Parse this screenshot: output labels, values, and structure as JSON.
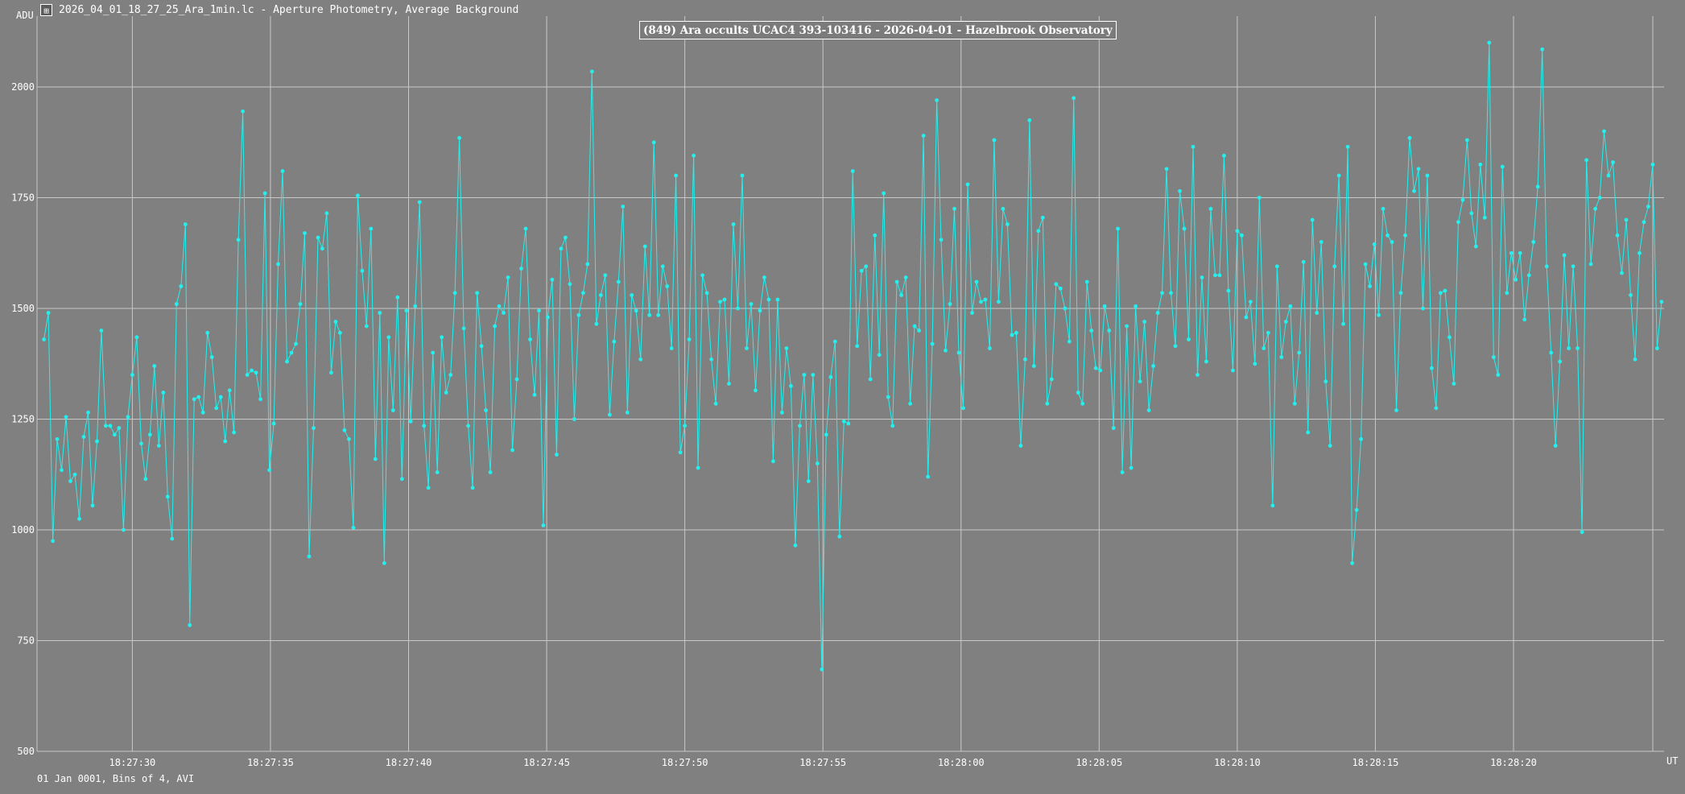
{
  "window": {
    "title": "2026_04_01_18_27_25_Ara_1min.lc - Aperture Photometry, Average Background",
    "icon": "app-chart-icon"
  },
  "colors": {
    "background": "#808080",
    "grid": "#c8c8c8",
    "series": "#22f0ee",
    "text": "#ffffff"
  },
  "footer_text": "01 Jan 0001, Bins of 4, AVI",
  "chart_data": {
    "type": "line",
    "title": "(849) Ara occults UCAC4 393-103416 - 2026-04-01 - Hazelbrook Observatory",
    "ylabel": "ADU",
    "xlabel": "UT",
    "ylim": [
      500,
      2160
    ],
    "xlim_seconds": [
      26.55,
      85.45
    ],
    "y_ticks": [
      500,
      750,
      1000,
      1250,
      1500,
      1750,
      2000
    ],
    "x_ticks": [
      "18:27:30",
      "18:27:35",
      "18:27:40",
      "18:27:45",
      "18:27:50",
      "18:27:55",
      "18:28:00",
      "18:28:05",
      "18:28:10",
      "18:28:15",
      "18:28:20"
    ],
    "x_start": "18:27:26.8",
    "x_step_seconds": 0.16,
    "grid": true,
    "markers": true,
    "series": [
      {
        "values": [
          1430,
          1490,
          975,
          1205,
          1135,
          1255,
          1110,
          1125,
          1025,
          1210,
          1265,
          1055,
          1200,
          1450,
          1235,
          1235,
          1215,
          1230,
          1000,
          1255,
          1350,
          1435,
          1195,
          1115,
          1215,
          1370,
          1190,
          1310,
          1075,
          980,
          1510,
          1550,
          1690,
          785,
          1295,
          1300,
          1265,
          1445,
          1390,
          1275,
          1300,
          1200,
          1315,
          1220,
          1655,
          1945,
          1350,
          1360,
          1355,
          1295,
          1760,
          1135,
          1240,
          1600,
          1810,
          1380,
          1400,
          1420,
          1510,
          1670,
          940,
          1230,
          1660,
          1635,
          1715,
          1355,
          1470,
          1445,
          1225,
          1205,
          1005,
          1755,
          1585,
          1460,
          1680,
          1160,
          1490,
          925,
          1435,
          1270,
          1525,
          1115,
          1495,
          1245,
          1505,
          1740,
          1235,
          1095,
          1400,
          1130,
          1435,
          1310,
          1350,
          1535,
          1885,
          1455,
          1235,
          1095,
          1535,
          1415,
          1270,
          1130,
          1460,
          1505,
          1490,
          1570,
          1180,
          1340,
          1590,
          1680,
          1430,
          1305,
          1495,
          1010,
          1480,
          1565,
          1170,
          1635,
          1660,
          1555,
          1250,
          1485,
          1535,
          1600,
          2035,
          1465,
          1530,
          1575,
          1260,
          1425,
          1560,
          1730,
          1265,
          1530,
          1495,
          1385,
          1640,
          1485,
          1875,
          1485,
          1595,
          1550,
          1410,
          1800,
          1175,
          1235,
          1430,
          1845,
          1140,
          1575,
          1535,
          1385,
          1285,
          1515,
          1520,
          1330,
          1690,
          1500,
          1800,
          1410,
          1510,
          1315,
          1495,
          1570,
          1520,
          1155,
          1520,
          1265,
          1410,
          1325,
          965,
          1235,
          1350,
          1110,
          1350,
          1150,
          685,
          1215,
          1345,
          1425,
          985,
          1245,
          1240,
          1810,
          1415,
          1585,
          1595,
          1340,
          1665,
          1395,
          1760,
          1300,
          1235,
          1560,
          1530,
          1570,
          1285,
          1460,
          1450,
          1890,
          1120,
          1420,
          1970,
          1655,
          1405,
          1510,
          1725,
          1400,
          1275,
          1780,
          1490,
          1560,
          1515,
          1520,
          1410,
          1880,
          1515,
          1725,
          1690,
          1440,
          1445,
          1190,
          1385,
          1925,
          1370,
          1675,
          1705,
          1285,
          1340,
          1555,
          1545,
          1500,
          1425,
          1975,
          1310,
          1285,
          1560,
          1450,
          1365,
          1360,
          1505,
          1450,
          1230,
          1680,
          1130,
          1460,
          1140,
          1505,
          1335,
          1470,
          1270,
          1370,
          1490,
          1535,
          1815,
          1535,
          1415,
          1765,
          1680,
          1430,
          1865,
          1350,
          1570,
          1380,
          1725,
          1575,
          1575,
          1845,
          1540,
          1360,
          1675,
          1665,
          1480,
          1515,
          1375,
          1750,
          1410,
          1445,
          1055,
          1595,
          1390,
          1470,
          1505,
          1285,
          1400,
          1605,
          1220,
          1700,
          1490,
          1650,
          1335,
          1190,
          1595,
          1800,
          1465,
          1865,
          925,
          1045,
          1205,
          1600,
          1550,
          1645,
          1485,
          1725,
          1665,
          1650,
          1270,
          1535,
          1665,
          1885,
          1765,
          1815,
          1500,
          1800,
          1365,
          1275,
          1535,
          1540,
          1435,
          1330,
          1695,
          1745,
          1880,
          1715,
          1640,
          1825,
          1705,
          2100,
          1390,
          1350,
          1820,
          1535,
          1625,
          1565,
          1625,
          1475,
          1575,
          1650,
          1775,
          2085,
          1595,
          1400,
          1190,
          1380,
          1620,
          1410,
          1595,
          1410,
          995,
          1835,
          1600,
          1725,
          1750,
          1900,
          1800,
          1830,
          1665,
          1580,
          1700,
          1530,
          1385,
          1625,
          1695,
          1730,
          1825,
          1410,
          1515
        ]
      }
    ]
  }
}
